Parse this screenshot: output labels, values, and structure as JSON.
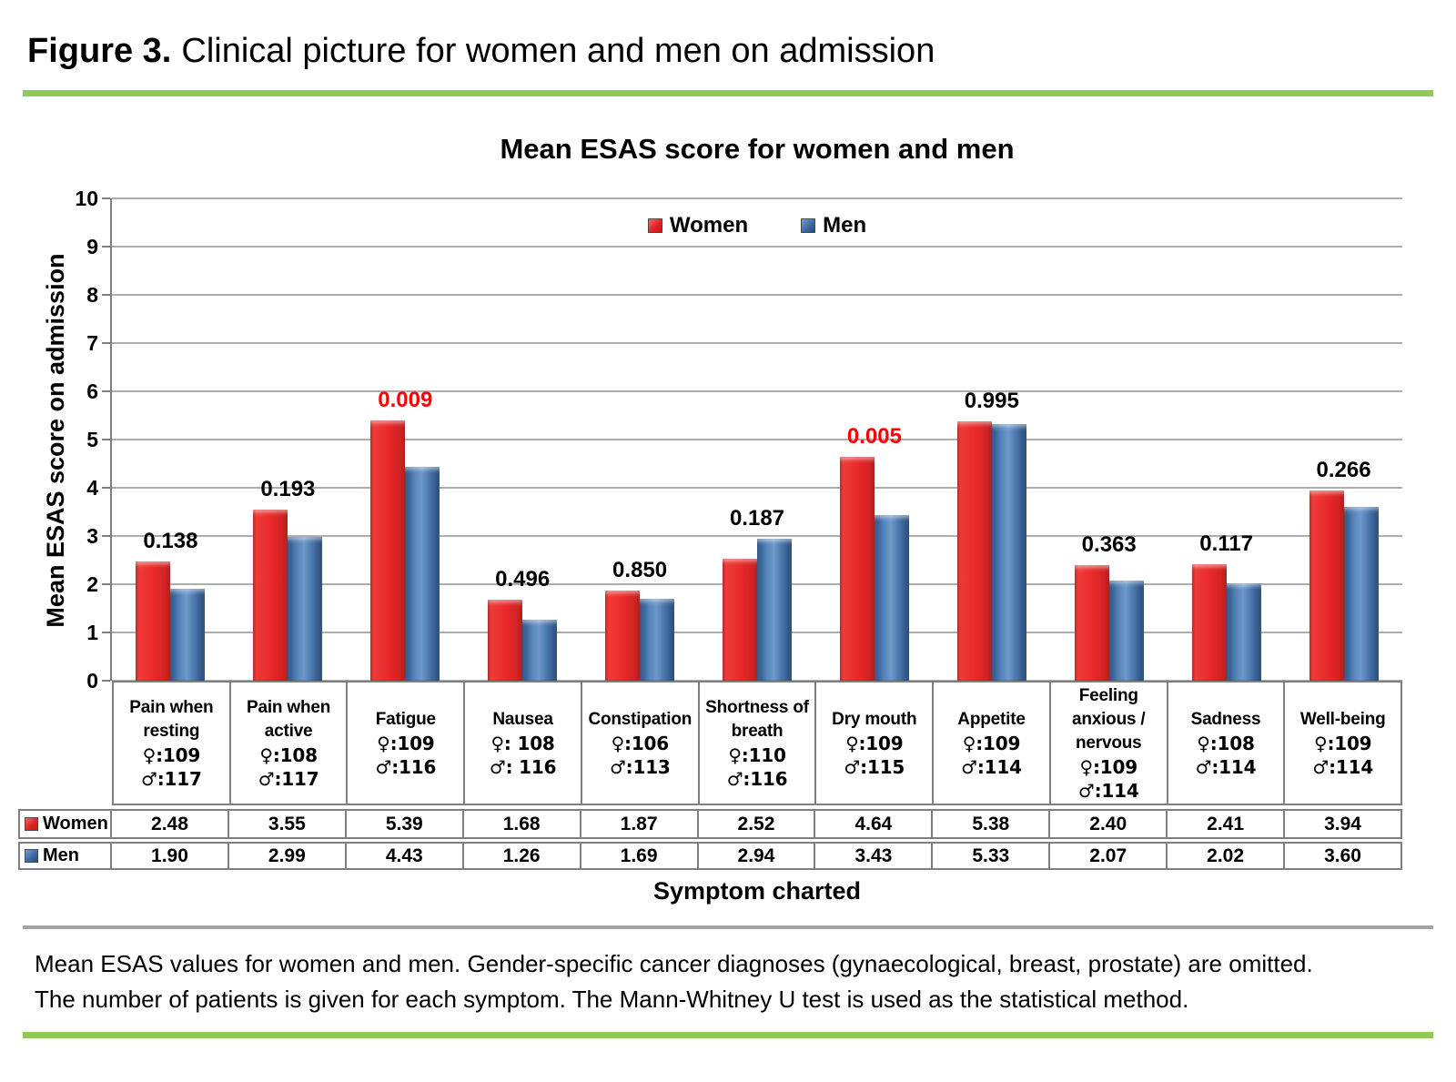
{
  "figure": {
    "label": "Figure 3.",
    "title_rest": "Clinical picture for women and men on admission"
  },
  "caption": {
    "line1": "Mean ESAS values for women and men. Gender-specific cancer diagnoses (gynaecological, breast, prostate) are omitted.",
    "line2": "The number of patients is given for each symptom. The Mann-Whitney U test is used as the statistical method."
  },
  "colors": {
    "women_bar": "#e8282a",
    "men_bar": "#3d6ba3",
    "p_value_significant": "#ff0000",
    "accent_green": "#90c956",
    "grid_gray": "#adadad",
    "border_gray": "#7f7f7f"
  },
  "chart_data": {
    "type": "bar",
    "title": "Mean ESAS score for women and men",
    "xlabel": "Symptom charted",
    "ylabel": "Mean ESAS score on admission",
    "ylim": [
      0,
      10
    ],
    "ytick_step": 1,
    "grid": true,
    "legend_position": "top-center",
    "categories": [
      {
        "name": "Pain when resting",
        "name_lines": [
          "Pain when",
          "resting"
        ],
        "female_n": "♀:109",
        "male_n": "♂:117",
        "p_value": "0.138",
        "p_significant": false
      },
      {
        "name": "Pain when active",
        "name_lines": [
          "Pain when",
          "active"
        ],
        "female_n": "♀:108",
        "male_n": "♂:117",
        "p_value": "0.193",
        "p_significant": false
      },
      {
        "name": "Fatigue",
        "name_lines": [
          "Fatigue"
        ],
        "female_n": "♀:109",
        "male_n": "♂:116",
        "p_value": "0.009",
        "p_significant": true
      },
      {
        "name": "Nausea",
        "name_lines": [
          "Nausea"
        ],
        "female_n": "♀: 108",
        "male_n": "♂: 116",
        "p_value": "0.496",
        "p_significant": false
      },
      {
        "name": "Constipation",
        "name_lines": [
          "Constipation"
        ],
        "female_n": "♀:106",
        "male_n": "♂:113",
        "p_value": "0.850",
        "p_significant": false
      },
      {
        "name": "Shortness of breath",
        "name_lines": [
          "Shortness of",
          "breath"
        ],
        "female_n": "♀:110",
        "male_n": "♂:116",
        "p_value": "0.187",
        "p_significant": false
      },
      {
        "name": "Dry mouth",
        "name_lines": [
          "Dry mouth"
        ],
        "female_n": "♀:109",
        "male_n": "♂:115",
        "p_value": "0.005",
        "p_significant": true
      },
      {
        "name": "Appetite",
        "name_lines": [
          "Appetite"
        ],
        "female_n": "♀:109",
        "male_n": "♂:114",
        "p_value": "0.995",
        "p_significant": false
      },
      {
        "name": "Feeling anxious / nervous",
        "name_lines": [
          "Feeling",
          "anxious /",
          "nervous"
        ],
        "female_n": "♀:109",
        "male_n": "♂:114",
        "p_value": "0.363",
        "p_significant": false
      },
      {
        "name": "Sadness",
        "name_lines": [
          "Sadness"
        ],
        "female_n": "♀:108",
        "male_n": "♂:114",
        "p_value": "0.117",
        "p_significant": false
      },
      {
        "name": "Well-being",
        "name_lines": [
          "Well-being"
        ],
        "female_n": "♀:109",
        "male_n": "♂:114",
        "p_value": "0.266",
        "p_significant": false
      }
    ],
    "series": [
      {
        "name": "Women",
        "values": [
          "2.48",
          "3.55",
          "5.39",
          "1.68",
          "1.87",
          "2.52",
          "4.64",
          "5.38",
          "2.40",
          "2.41",
          "3.94"
        ]
      },
      {
        "name": "Men",
        "values": [
          "1.90",
          "2.99",
          "4.43",
          "1.26",
          "1.69",
          "2.94",
          "3.43",
          "5.33",
          "2.07",
          "2.02",
          "3.60"
        ]
      }
    ]
  }
}
